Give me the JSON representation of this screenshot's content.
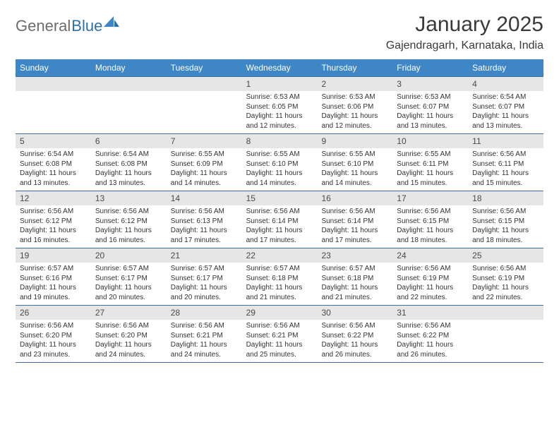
{
  "brand": {
    "part_a": "General",
    "part_b": "Blue"
  },
  "title": "January 2025",
  "location": "Gajendragarh, Karnataka, India",
  "colors": {
    "header_bg": "#3f86c6",
    "header_text": "#ffffff",
    "daynum_bg": "#e6e6e6",
    "week_border": "#3f6fa0",
    "body_text": "#333333",
    "logo_gray": "#6d6d6d",
    "logo_blue": "#2f6fa8"
  },
  "dow": [
    "Sunday",
    "Monday",
    "Tuesday",
    "Wednesday",
    "Thursday",
    "Friday",
    "Saturday"
  ],
  "weeks": [
    [
      {
        "n": "",
        "sr": "",
        "ss": "",
        "dl": ""
      },
      {
        "n": "",
        "sr": "",
        "ss": "",
        "dl": ""
      },
      {
        "n": "",
        "sr": "",
        "ss": "",
        "dl": ""
      },
      {
        "n": "1",
        "sr": "Sunrise: 6:53 AM",
        "ss": "Sunset: 6:05 PM",
        "dl": "Daylight: 11 hours and 12 minutes."
      },
      {
        "n": "2",
        "sr": "Sunrise: 6:53 AM",
        "ss": "Sunset: 6:06 PM",
        "dl": "Daylight: 11 hours and 12 minutes."
      },
      {
        "n": "3",
        "sr": "Sunrise: 6:53 AM",
        "ss": "Sunset: 6:07 PM",
        "dl": "Daylight: 11 hours and 13 minutes."
      },
      {
        "n": "4",
        "sr": "Sunrise: 6:54 AM",
        "ss": "Sunset: 6:07 PM",
        "dl": "Daylight: 11 hours and 13 minutes."
      }
    ],
    [
      {
        "n": "5",
        "sr": "Sunrise: 6:54 AM",
        "ss": "Sunset: 6:08 PM",
        "dl": "Daylight: 11 hours and 13 minutes."
      },
      {
        "n": "6",
        "sr": "Sunrise: 6:54 AM",
        "ss": "Sunset: 6:08 PM",
        "dl": "Daylight: 11 hours and 13 minutes."
      },
      {
        "n": "7",
        "sr": "Sunrise: 6:55 AM",
        "ss": "Sunset: 6:09 PM",
        "dl": "Daylight: 11 hours and 14 minutes."
      },
      {
        "n": "8",
        "sr": "Sunrise: 6:55 AM",
        "ss": "Sunset: 6:10 PM",
        "dl": "Daylight: 11 hours and 14 minutes."
      },
      {
        "n": "9",
        "sr": "Sunrise: 6:55 AM",
        "ss": "Sunset: 6:10 PM",
        "dl": "Daylight: 11 hours and 14 minutes."
      },
      {
        "n": "10",
        "sr": "Sunrise: 6:55 AM",
        "ss": "Sunset: 6:11 PM",
        "dl": "Daylight: 11 hours and 15 minutes."
      },
      {
        "n": "11",
        "sr": "Sunrise: 6:56 AM",
        "ss": "Sunset: 6:11 PM",
        "dl": "Daylight: 11 hours and 15 minutes."
      }
    ],
    [
      {
        "n": "12",
        "sr": "Sunrise: 6:56 AM",
        "ss": "Sunset: 6:12 PM",
        "dl": "Daylight: 11 hours and 16 minutes."
      },
      {
        "n": "13",
        "sr": "Sunrise: 6:56 AM",
        "ss": "Sunset: 6:12 PM",
        "dl": "Daylight: 11 hours and 16 minutes."
      },
      {
        "n": "14",
        "sr": "Sunrise: 6:56 AM",
        "ss": "Sunset: 6:13 PM",
        "dl": "Daylight: 11 hours and 17 minutes."
      },
      {
        "n": "15",
        "sr": "Sunrise: 6:56 AM",
        "ss": "Sunset: 6:14 PM",
        "dl": "Daylight: 11 hours and 17 minutes."
      },
      {
        "n": "16",
        "sr": "Sunrise: 6:56 AM",
        "ss": "Sunset: 6:14 PM",
        "dl": "Daylight: 11 hours and 17 minutes."
      },
      {
        "n": "17",
        "sr": "Sunrise: 6:56 AM",
        "ss": "Sunset: 6:15 PM",
        "dl": "Daylight: 11 hours and 18 minutes."
      },
      {
        "n": "18",
        "sr": "Sunrise: 6:56 AM",
        "ss": "Sunset: 6:15 PM",
        "dl": "Daylight: 11 hours and 18 minutes."
      }
    ],
    [
      {
        "n": "19",
        "sr": "Sunrise: 6:57 AM",
        "ss": "Sunset: 6:16 PM",
        "dl": "Daylight: 11 hours and 19 minutes."
      },
      {
        "n": "20",
        "sr": "Sunrise: 6:57 AM",
        "ss": "Sunset: 6:17 PM",
        "dl": "Daylight: 11 hours and 20 minutes."
      },
      {
        "n": "21",
        "sr": "Sunrise: 6:57 AM",
        "ss": "Sunset: 6:17 PM",
        "dl": "Daylight: 11 hours and 20 minutes."
      },
      {
        "n": "22",
        "sr": "Sunrise: 6:57 AM",
        "ss": "Sunset: 6:18 PM",
        "dl": "Daylight: 11 hours and 21 minutes."
      },
      {
        "n": "23",
        "sr": "Sunrise: 6:57 AM",
        "ss": "Sunset: 6:18 PM",
        "dl": "Daylight: 11 hours and 21 minutes."
      },
      {
        "n": "24",
        "sr": "Sunrise: 6:56 AM",
        "ss": "Sunset: 6:19 PM",
        "dl": "Daylight: 11 hours and 22 minutes."
      },
      {
        "n": "25",
        "sr": "Sunrise: 6:56 AM",
        "ss": "Sunset: 6:19 PM",
        "dl": "Daylight: 11 hours and 22 minutes."
      }
    ],
    [
      {
        "n": "26",
        "sr": "Sunrise: 6:56 AM",
        "ss": "Sunset: 6:20 PM",
        "dl": "Daylight: 11 hours and 23 minutes."
      },
      {
        "n": "27",
        "sr": "Sunrise: 6:56 AM",
        "ss": "Sunset: 6:20 PM",
        "dl": "Daylight: 11 hours and 24 minutes."
      },
      {
        "n": "28",
        "sr": "Sunrise: 6:56 AM",
        "ss": "Sunset: 6:21 PM",
        "dl": "Daylight: 11 hours and 24 minutes."
      },
      {
        "n": "29",
        "sr": "Sunrise: 6:56 AM",
        "ss": "Sunset: 6:21 PM",
        "dl": "Daylight: 11 hours and 25 minutes."
      },
      {
        "n": "30",
        "sr": "Sunrise: 6:56 AM",
        "ss": "Sunset: 6:22 PM",
        "dl": "Daylight: 11 hours and 26 minutes."
      },
      {
        "n": "31",
        "sr": "Sunrise: 6:56 AM",
        "ss": "Sunset: 6:22 PM",
        "dl": "Daylight: 11 hours and 26 minutes."
      },
      {
        "n": "",
        "sr": "",
        "ss": "",
        "dl": ""
      }
    ]
  ]
}
